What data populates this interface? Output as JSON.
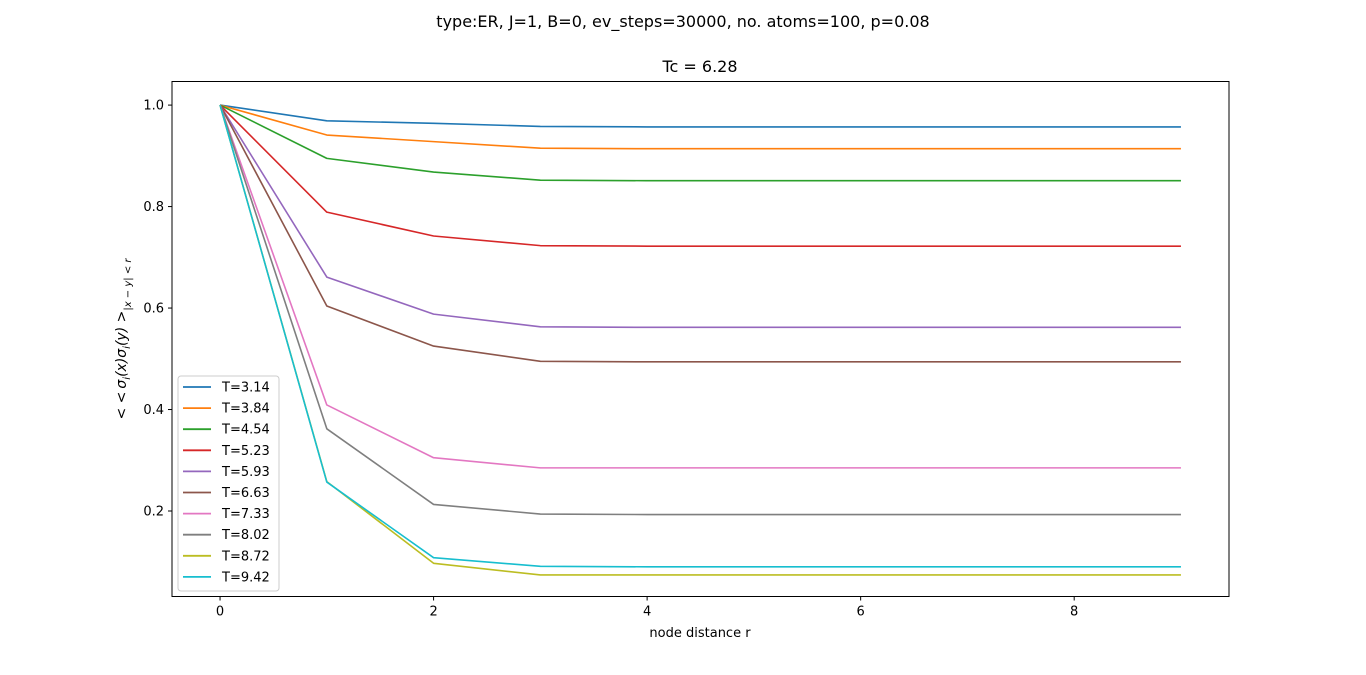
{
  "chart_data": {
    "type": "line",
    "suptitle": "type:ER, J=1, B=0, ev_steps=30000, no. atoms=100, p=0.08",
    "title": "Tc = 6.28",
    "xlabel": "node distance r",
    "ylabel": "< <σ_i(x)σ_i(y) >_{|x-y|<r}",
    "ylabel_parts": {
      "a": "< <",
      "s1": "σ",
      "i1": "i",
      "x": "(x)",
      "s2": "σ",
      "i2": "i",
      "y": "(y) >",
      "sub": "|x − y| < r"
    },
    "xlim": [
      -0.45,
      9.45
    ],
    "ylim": [
      0.0315,
      1.0465
    ],
    "xticks": [
      0,
      2,
      4,
      6,
      8
    ],
    "yticks": [
      0.2,
      0.4,
      0.6,
      0.8,
      1.0
    ],
    "xtick_labels": [
      "0",
      "2",
      "4",
      "6",
      "8"
    ],
    "ytick_labels": [
      "0.2",
      "0.4",
      "0.6",
      "0.8",
      "1.0"
    ],
    "grid": false,
    "legend_position": "lower-left",
    "x": [
      0,
      1,
      2,
      3,
      4,
      5,
      6,
      7,
      8,
      9
    ],
    "series": [
      {
        "name": "T=3.14",
        "color": "#1f77b4",
        "values": [
          1.0,
          0.969,
          0.964,
          0.958,
          0.957,
          0.957,
          0.957,
          0.957,
          0.957,
          0.957
        ]
      },
      {
        "name": "T=3.84",
        "color": "#ff7f0e",
        "values": [
          1.0,
          0.941,
          0.928,
          0.915,
          0.914,
          0.914,
          0.914,
          0.914,
          0.914,
          0.914
        ]
      },
      {
        "name": "T=4.54",
        "color": "#2ca02c",
        "values": [
          1.0,
          0.895,
          0.868,
          0.852,
          0.851,
          0.851,
          0.851,
          0.851,
          0.851,
          0.851
        ]
      },
      {
        "name": "T=5.23",
        "color": "#d62728",
        "values": [
          1.0,
          0.789,
          0.742,
          0.723,
          0.722,
          0.722,
          0.722,
          0.722,
          0.722,
          0.722
        ]
      },
      {
        "name": "T=5.93",
        "color": "#9467bd",
        "values": [
          1.0,
          0.661,
          0.588,
          0.563,
          0.562,
          0.562,
          0.562,
          0.562,
          0.562,
          0.562
        ]
      },
      {
        "name": "T=6.63",
        "color": "#8c564b",
        "values": [
          1.0,
          0.604,
          0.525,
          0.495,
          0.494,
          0.494,
          0.494,
          0.494,
          0.494,
          0.494
        ]
      },
      {
        "name": "T=7.33",
        "color": "#e377c2",
        "values": [
          1.0,
          0.409,
          0.305,
          0.285,
          0.285,
          0.285,
          0.285,
          0.285,
          0.285,
          0.285
        ]
      },
      {
        "name": "T=8.02",
        "color": "#7f7f7f",
        "values": [
          1.0,
          0.362,
          0.213,
          0.194,
          0.193,
          0.193,
          0.193,
          0.193,
          0.193,
          0.193
        ]
      },
      {
        "name": "T=8.72",
        "color": "#bcbd22",
        "values": [
          1.0,
          0.258,
          0.097,
          0.074,
          0.074,
          0.074,
          0.074,
          0.074,
          0.074,
          0.074
        ]
      },
      {
        "name": "T=9.42",
        "color": "#17becf",
        "values": [
          1.0,
          0.257,
          0.108,
          0.091,
          0.09,
          0.09,
          0.09,
          0.09,
          0.09,
          0.09
        ]
      }
    ]
  }
}
